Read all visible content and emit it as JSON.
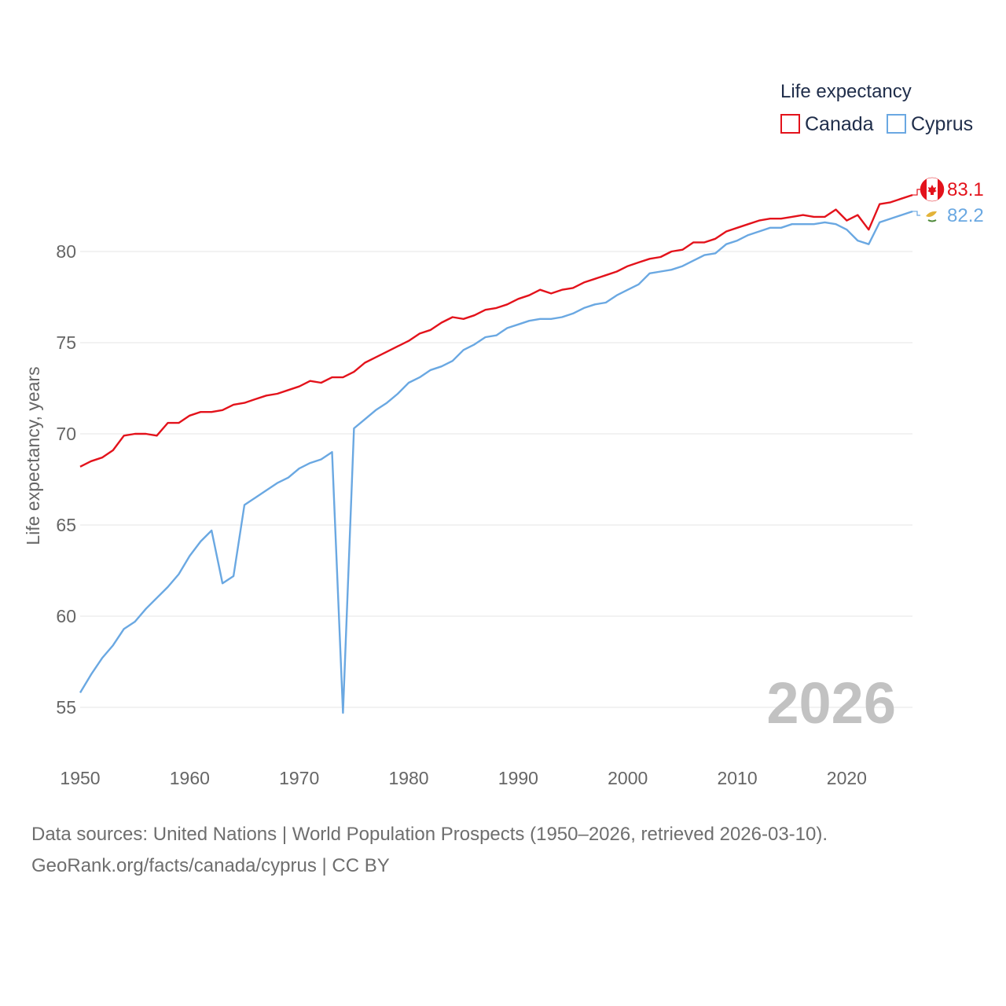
{
  "chart_data": {
    "type": "line",
    "title": "",
    "xlabel": "",
    "ylabel": "Life expectancy, years",
    "xlim": [
      1950,
      2026
    ],
    "ylim": [
      53,
      84.5
    ],
    "x_ticks": [
      1950,
      1960,
      1970,
      1980,
      1990,
      2000,
      2010,
      2020
    ],
    "y_ticks": [
      55,
      60,
      65,
      70,
      75,
      80
    ],
    "legend_title": "Life expectancy",
    "legend_position": "top-right",
    "year_stamp": "2026",
    "x": [
      1950,
      1951,
      1952,
      1953,
      1954,
      1955,
      1956,
      1957,
      1958,
      1959,
      1960,
      1961,
      1962,
      1963,
      1964,
      1965,
      1966,
      1967,
      1968,
      1969,
      1970,
      1971,
      1972,
      1973,
      1974,
      1975,
      1976,
      1977,
      1978,
      1979,
      1980,
      1981,
      1982,
      1983,
      1984,
      1985,
      1986,
      1987,
      1988,
      1989,
      1990,
      1991,
      1992,
      1993,
      1994,
      1995,
      1996,
      1997,
      1998,
      1999,
      2000,
      2001,
      2002,
      2003,
      2004,
      2005,
      2006,
      2007,
      2008,
      2009,
      2010,
      2011,
      2012,
      2013,
      2014,
      2015,
      2016,
      2017,
      2018,
      2019,
      2020,
      2021,
      2022,
      2023,
      2024,
      2025,
      2026
    ],
    "series": [
      {
        "name": "Canada",
        "color": "#e3121b",
        "end_label": "83.1",
        "values": [
          68.2,
          68.5,
          68.7,
          69.1,
          69.9,
          70.0,
          70.0,
          69.9,
          70.6,
          70.6,
          71.0,
          71.2,
          71.2,
          71.3,
          71.6,
          71.7,
          71.9,
          72.1,
          72.2,
          72.4,
          72.6,
          72.9,
          72.8,
          73.1,
          73.1,
          73.4,
          73.9,
          74.2,
          74.5,
          74.8,
          75.1,
          75.5,
          75.7,
          76.1,
          76.4,
          76.3,
          76.5,
          76.8,
          76.9,
          77.1,
          77.4,
          77.6,
          77.9,
          77.7,
          77.9,
          78.0,
          78.3,
          78.5,
          78.7,
          78.9,
          79.2,
          79.4,
          79.6,
          79.7,
          80.0,
          80.1,
          80.5,
          80.5,
          80.7,
          81.1,
          81.3,
          81.5,
          81.7,
          81.8,
          81.8,
          81.9,
          82.0,
          81.9,
          81.9,
          82.3,
          81.7,
          82.0,
          81.2,
          82.6,
          82.7,
          82.9,
          83.1
        ]
      },
      {
        "name": "Cyprus",
        "color": "#6aa8e2",
        "end_label": "82.2",
        "values": [
          55.8,
          56.8,
          57.7,
          58.4,
          59.3,
          59.7,
          60.4,
          61.0,
          61.6,
          62.3,
          63.3,
          64.1,
          64.7,
          61.8,
          62.2,
          66.1,
          66.5,
          66.9,
          67.3,
          67.6,
          68.1,
          68.4,
          68.6,
          69.0,
          54.7,
          70.3,
          70.8,
          71.3,
          71.7,
          72.2,
          72.8,
          73.1,
          73.5,
          73.7,
          74.0,
          74.6,
          74.9,
          75.3,
          75.4,
          75.8,
          76.0,
          76.2,
          76.3,
          76.3,
          76.4,
          76.6,
          76.9,
          77.1,
          77.2,
          77.6,
          77.9,
          78.2,
          78.8,
          78.9,
          79.0,
          79.2,
          79.5,
          79.8,
          79.9,
          80.4,
          80.6,
          80.9,
          81.1,
          81.3,
          81.3,
          81.5,
          81.5,
          81.5,
          81.6,
          81.5,
          81.2,
          80.6,
          80.4,
          81.6,
          81.8,
          82.0,
          82.2
        ]
      }
    ]
  },
  "source": {
    "line1": "Data sources: United Nations | World Population Prospects (1950–2026, retrieved 2026-03-10).",
    "line2": "GeoRank.org/facts/canada/cyprus | CC BY"
  }
}
